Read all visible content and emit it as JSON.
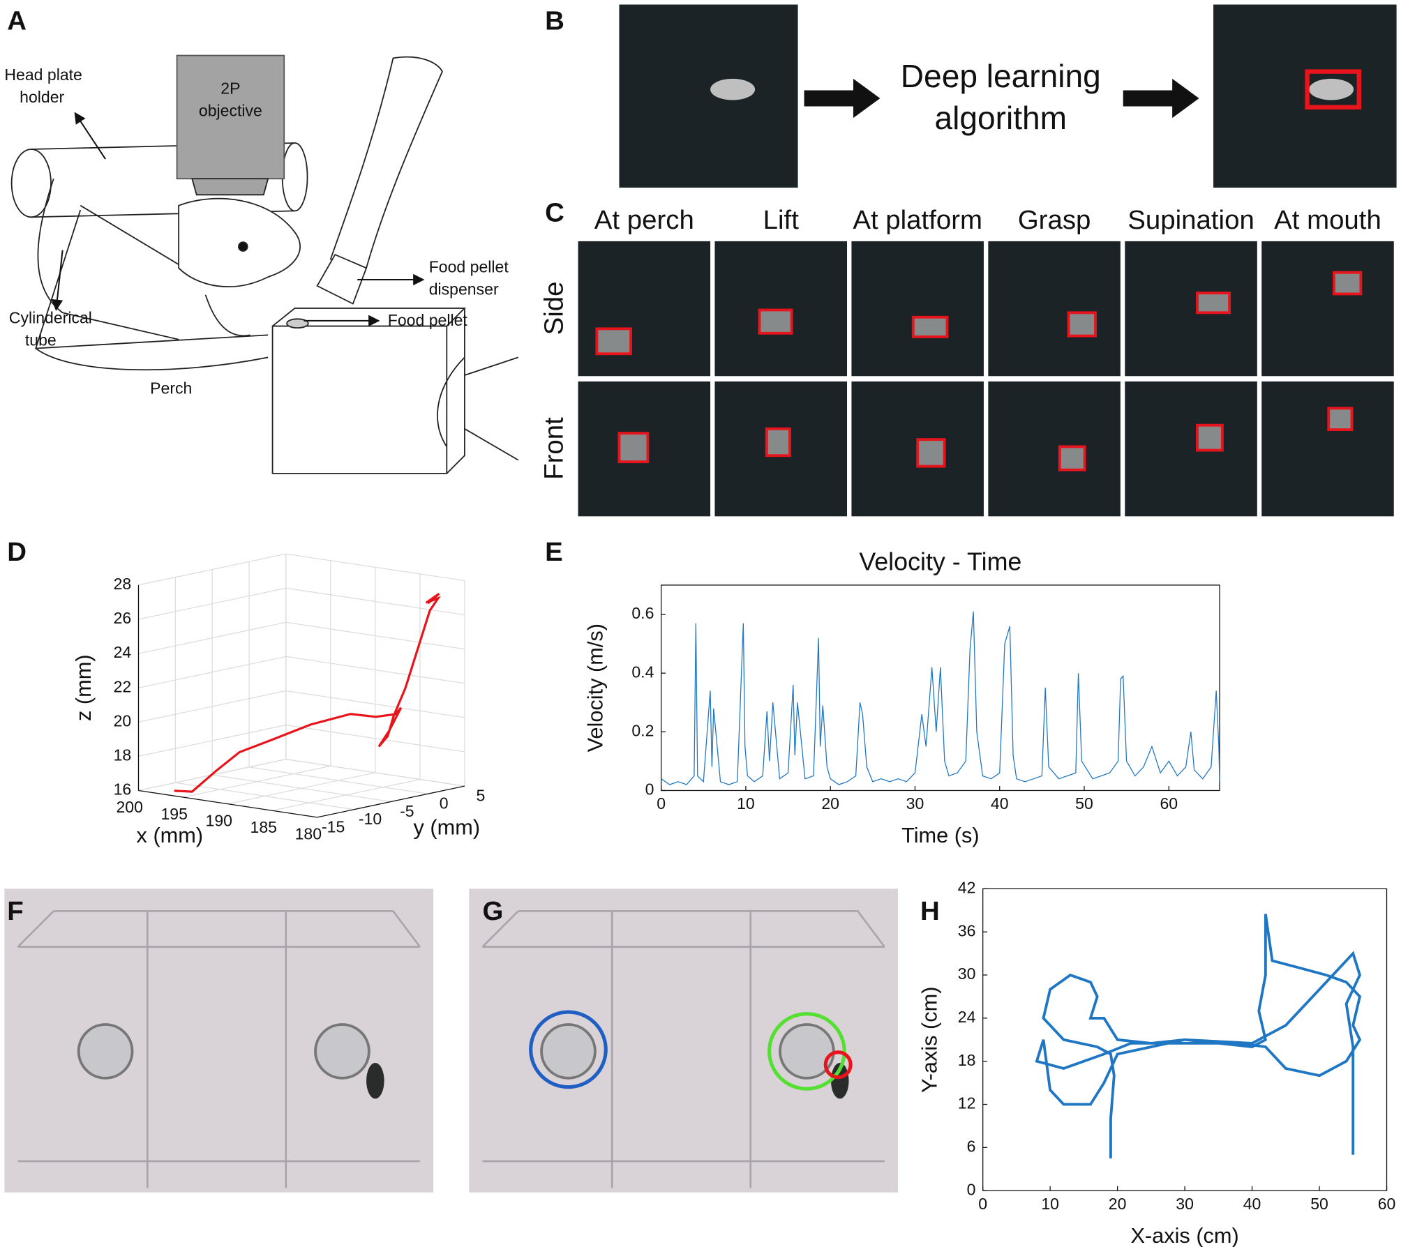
{
  "panel_labels": [
    "A",
    "B",
    "C",
    "D",
    "E",
    "F",
    "G",
    "H"
  ],
  "diagram_labels": [
    [
      "Head plate",
      "holder"
    ],
    [
      "2P",
      "objective"
    ],
    [
      "Food pellet",
      "dispenser"
    ],
    [
      "Food pellet"
    ],
    [
      "Cylinderical",
      "tube"
    ],
    [
      "Perch"
    ]
  ],
  "panel_b": {
    "text": [
      "Deep learning",
      "algorithm"
    ]
  },
  "panel_c": {
    "columns": [
      "At perch",
      "Lift",
      "At platform",
      "Grasp",
      "Supination",
      "At mouth"
    ],
    "rows": [
      "Side",
      "Front"
    ]
  },
  "chart_data": [
    {
      "type": "line3d",
      "color": "#e8141b",
      "xlabel": "x (mm)",
      "ylabel": "y (mm)",
      "zlabel": "z (mm)",
      "x": [
        196,
        194,
        193,
        192,
        191,
        189,
        187,
        185,
        184,
        183,
        183.5,
        183,
        182,
        183,
        182.5,
        182,
        181.5,
        181,
        180.5,
        181,
        180.8,
        181.2
      ],
      "y": [
        -15,
        -15,
        -13,
        -11,
        -8,
        -5,
        -2,
        -1,
        0.5,
        0,
        -1,
        -3,
        -3,
        -1,
        0,
        0.5,
        1,
        1.5,
        2,
        1,
        2.5,
        1.5
      ],
      "z": [
        16.3,
        16.4,
        17.5,
        18.5,
        19,
        19.8,
        20.3,
        20.2,
        20.3,
        20.8,
        19.5,
        18.8,
        19.5,
        20.4,
        22,
        23.5,
        25,
        26.5,
        27.2,
        27,
        27.4,
        26.9
      ],
      "xlim": [
        200,
        180
      ],
      "ylim": [
        -15,
        5
      ],
      "zlim": [
        16,
        28
      ],
      "xticks": [
        200,
        195,
        190,
        185,
        180
      ],
      "yticks": [
        -15,
        -10,
        -5,
        0,
        5
      ],
      "zticks": [
        16,
        18,
        20,
        22,
        24,
        26,
        28
      ],
      "grid": true
    },
    {
      "type": "line",
      "title": "Velocity - Time",
      "xlabel": "Time (s)",
      "ylabel": "Velocity (m/s)",
      "color": "#1f77c4",
      "x": [
        0,
        1,
        2,
        3,
        3.9,
        4.1,
        4.3,
        5,
        5.8,
        6,
        6.2,
        7,
        8,
        9,
        9.7,
        9.9,
        10.2,
        11,
        12,
        12.5,
        12.8,
        13.2,
        14,
        15,
        15.6,
        15.8,
        16.1,
        17,
        18,
        18.6,
        18.8,
        19.1,
        19.6,
        20,
        21,
        22,
        23,
        23.5,
        23.8,
        24.3,
        25,
        26,
        27,
        28,
        29,
        30,
        30.8,
        31.3,
        32,
        32.5,
        33,
        33.5,
        34,
        35,
        36,
        36.5,
        36.9,
        37.3,
        38,
        39,
        40,
        40.6,
        41.2,
        41.6,
        42,
        43,
        44,
        45,
        45.4,
        45.8,
        47,
        48,
        49,
        49.3,
        49.7,
        51,
        52,
        53,
        54,
        54.3,
        54.6,
        55,
        56,
        57,
        58,
        59,
        60,
        61,
        62,
        62.6,
        63,
        64,
        65,
        65.6,
        65.9,
        66
      ],
      "values": [
        0.04,
        0.02,
        0.03,
        0.02,
        0.05,
        0.57,
        0.05,
        0.03,
        0.34,
        0.08,
        0.28,
        0.03,
        0.02,
        0.03,
        0.57,
        0.15,
        0.05,
        0.03,
        0.05,
        0.27,
        0.1,
        0.3,
        0.04,
        0.06,
        0.36,
        0.12,
        0.3,
        0.04,
        0.05,
        0.52,
        0.15,
        0.29,
        0.08,
        0.04,
        0.02,
        0.03,
        0.05,
        0.3,
        0.26,
        0.08,
        0.03,
        0.04,
        0.03,
        0.04,
        0.03,
        0.06,
        0.26,
        0.15,
        0.42,
        0.2,
        0.42,
        0.1,
        0.05,
        0.06,
        0.1,
        0.48,
        0.61,
        0.2,
        0.05,
        0.04,
        0.06,
        0.5,
        0.56,
        0.12,
        0.04,
        0.03,
        0.04,
        0.05,
        0.35,
        0.08,
        0.04,
        0.05,
        0.06,
        0.4,
        0.1,
        0.04,
        0.05,
        0.06,
        0.1,
        0.38,
        0.39,
        0.1,
        0.05,
        0.08,
        0.15,
        0.06,
        0.1,
        0.05,
        0.08,
        0.2,
        0.07,
        0.04,
        0.08,
        0.34,
        0.15,
        0.03
      ],
      "xlim": [
        0,
        66
      ],
      "ylim": [
        0,
        0.7
      ],
      "xticks": [
        0,
        10,
        20,
        30,
        40,
        50,
        60
      ],
      "yticks": [
        0,
        0.2,
        0.4,
        0.6
      ]
    },
    {
      "type": "line",
      "xlabel": "X-axis (cm)",
      "ylabel": "Y-axis (cm)",
      "color": "#1f77c4",
      "x": [
        19,
        19,
        19.5,
        19,
        17,
        12,
        9,
        10,
        13,
        16,
        17,
        16,
        18,
        20,
        25,
        30,
        35,
        40,
        42,
        41,
        42,
        42,
        43,
        47,
        51,
        54,
        56,
        55,
        56,
        54,
        50,
        45,
        42,
        38,
        30,
        22,
        18,
        12,
        8,
        9,
        10,
        12,
        16,
        18,
        20,
        30,
        40,
        45,
        50,
        55,
        56,
        54,
        55,
        55,
        55,
        55
      ],
      "values": [
        4.5,
        10,
        16,
        19,
        20,
        21,
        24,
        28,
        30,
        29,
        27,
        24,
        24,
        21,
        20.5,
        21,
        20.5,
        20,
        21,
        25,
        30,
        38.5,
        32,
        31,
        30,
        29,
        27,
        23,
        21,
        18,
        16,
        17,
        20,
        20.5,
        20.5,
        20.5,
        19,
        17,
        18,
        21,
        14,
        12,
        12,
        15,
        19,
        21,
        20.5,
        23,
        28,
        33,
        30,
        26,
        20,
        12,
        8,
        5
      ],
      "xlim": [
        0,
        60
      ],
      "ylim": [
        0,
        42
      ],
      "xticks": [
        0,
        10,
        20,
        30,
        40,
        50,
        60
      ],
      "yticks": [
        0,
        6,
        12,
        18,
        24,
        30,
        36,
        42
      ]
    }
  ]
}
